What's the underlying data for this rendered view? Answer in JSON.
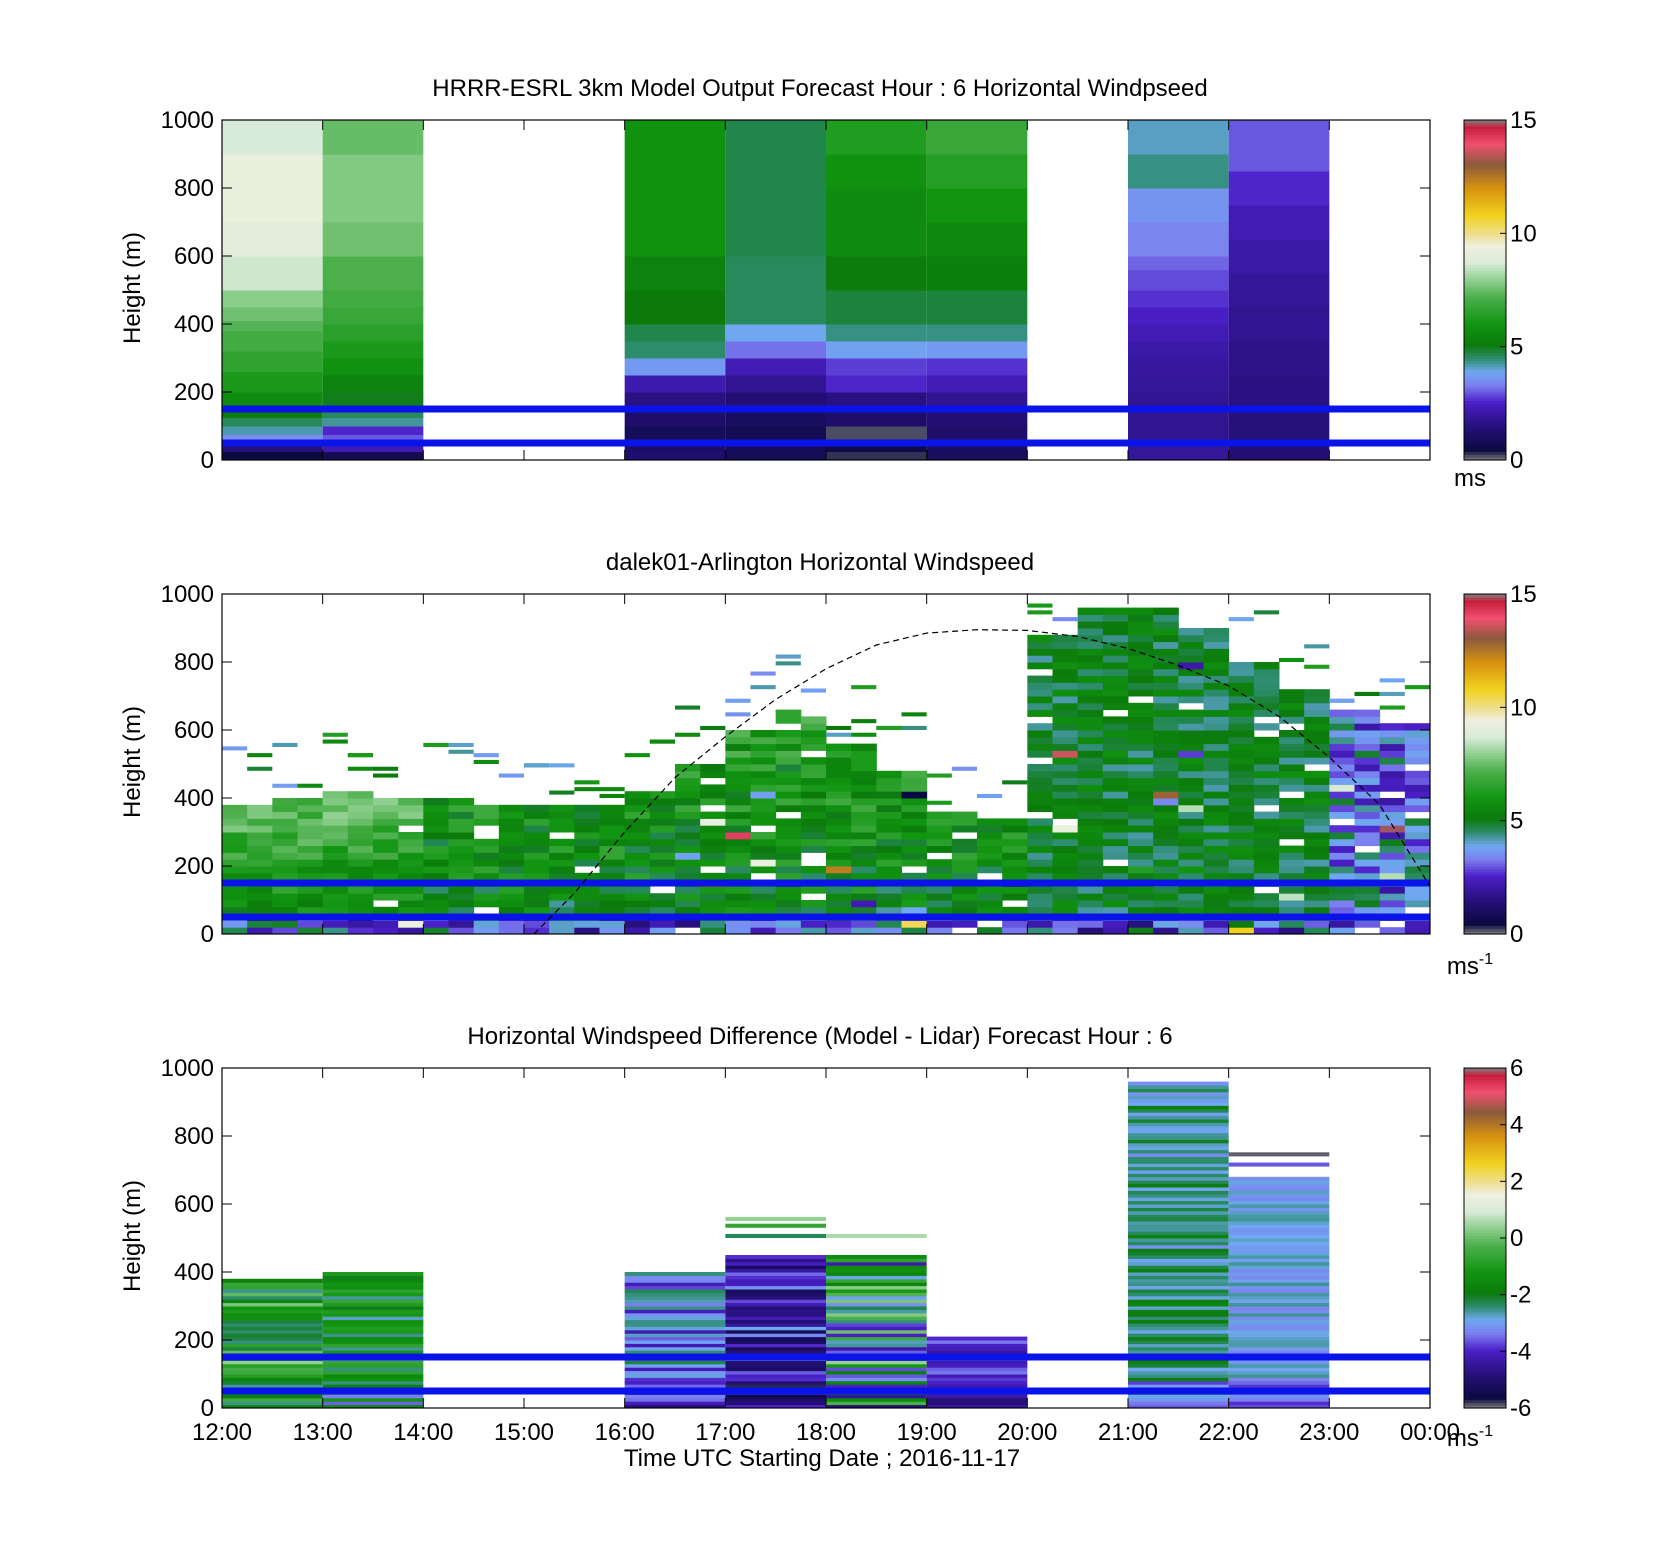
{
  "chart_data": [
    {
      "id": "model",
      "type": "heatmap",
      "title": "HRRR-ESRL 3km Model Output   Forecast Hour : 6 Horizontal Windpseed",
      "ylabel": "Height (m)",
      "xlabel": "",
      "xlim": [
        12,
        24
      ],
      "ylim": [
        0,
        1000
      ],
      "x_tick_labels": [
        "12:00",
        "13:00",
        "14:00",
        "15:00",
        "16:00",
        "17:00",
        "18:00",
        "19:00",
        "20:00",
        "21:00",
        "22:00",
        "23:00",
        "00:00"
      ],
      "y_tick_labels": [
        "0",
        "200",
        "400",
        "600",
        "800",
        "1000"
      ],
      "colorbar": {
        "min": 0,
        "max": 15,
        "ticks": [
          "0",
          "5",
          "10",
          "15"
        ],
        "unit": "ms",
        "unit_sup": ""
      },
      "reference_lines_m": [
        150,
        50
      ],
      "columns": [
        {
          "hour": 12,
          "segments": [
            [
              0,
              25,
              0.5
            ],
            [
              25,
              50,
              1.5
            ],
            [
              50,
              75,
              3.5
            ],
            [
              75,
              100,
              4.2
            ],
            [
              100,
              125,
              4.6
            ],
            [
              125,
              150,
              5.2
            ],
            [
              150,
              200,
              5.7
            ],
            [
              200,
              260,
              6.2
            ],
            [
              260,
              320,
              6.6
            ],
            [
              320,
              380,
              7.0
            ],
            [
              380,
              410,
              7.3
            ],
            [
              410,
              450,
              7.6
            ],
            [
              450,
              500,
              7.9
            ],
            [
              500,
              600,
              8.6
            ],
            [
              600,
              700,
              9.0
            ],
            [
              700,
              900,
              9.3
            ],
            [
              900,
              1000,
              8.7
            ]
          ]
        },
        {
          "hour": 13,
          "segments": [
            [
              0,
              25,
              0.8
            ],
            [
              25,
              50,
              2.3
            ],
            [
              50,
              75,
              3.0
            ],
            [
              75,
              100,
              2.6
            ],
            [
              100,
              125,
              4.3
            ],
            [
              125,
              150,
              4.6
            ],
            [
              150,
              200,
              5.0
            ],
            [
              200,
              250,
              5.4
            ],
            [
              250,
              300,
              5.9
            ],
            [
              300,
              350,
              6.2
            ],
            [
              350,
              400,
              6.5
            ],
            [
              400,
              450,
              6.8
            ],
            [
              450,
              500,
              7.0
            ],
            [
              500,
              600,
              7.2
            ],
            [
              600,
              700,
              7.6
            ],
            [
              700,
              900,
              7.8
            ],
            [
              900,
              1000,
              7.5
            ]
          ]
        },
        {
          "hour": 16,
          "segments": [
            [
              0,
              25,
              1.3
            ],
            [
              25,
              50,
              1.1
            ],
            [
              50,
              100,
              0.9
            ],
            [
              100,
              150,
              1.2
            ],
            [
              150,
              200,
              1.6
            ],
            [
              200,
              250,
              2.2
            ],
            [
              250,
              300,
              3.7
            ],
            [
              300,
              350,
              4.5
            ],
            [
              350,
              400,
              4.7
            ],
            [
              400,
              500,
              5.1
            ],
            [
              500,
              600,
              5.4
            ],
            [
              600,
              1000,
              5.9
            ]
          ]
        },
        {
          "hour": 17,
          "segments": [
            [
              0,
              50,
              0.9
            ],
            [
              50,
              100,
              0.8
            ],
            [
              100,
              150,
              1.0
            ],
            [
              150,
              200,
              1.4
            ],
            [
              200,
              250,
              1.8
            ],
            [
              250,
              300,
              2.3
            ],
            [
              300,
              350,
              3.2
            ],
            [
              350,
              400,
              3.9
            ],
            [
              400,
              600,
              4.6
            ],
            [
              600,
              1000,
              4.7
            ]
          ]
        },
        {
          "hour": 18,
          "segments": [
            [
              0,
              25,
              0.3
            ],
            [
              25,
              50,
              0.6
            ],
            [
              50,
              100,
              0.2
            ],
            [
              100,
              150,
              1.2
            ],
            [
              150,
              200,
              1.6
            ],
            [
              200,
              250,
              2.6
            ],
            [
              250,
              300,
              2.8
            ],
            [
              300,
              350,
              3.8
            ],
            [
              350,
              400,
              4.4
            ],
            [
              400,
              500,
              4.8
            ],
            [
              500,
              600,
              5.2
            ],
            [
              600,
              800,
              5.7
            ],
            [
              800,
              900,
              5.9
            ],
            [
              900,
              1000,
              6.3
            ]
          ]
        },
        {
          "hour": 19,
          "segments": [
            [
              0,
              50,
              1.0
            ],
            [
              50,
              100,
              1.2
            ],
            [
              100,
              150,
              1.4
            ],
            [
              150,
              200,
              1.8
            ],
            [
              200,
              250,
              2.3
            ],
            [
              250,
              300,
              2.7
            ],
            [
              300,
              350,
              3.7
            ],
            [
              350,
              400,
              4.4
            ],
            [
              400,
              500,
              4.8
            ],
            [
              500,
              600,
              5.3
            ],
            [
              600,
              700,
              5.6
            ],
            [
              700,
              800,
              6.0
            ],
            [
              800,
              900,
              6.4
            ],
            [
              900,
              1000,
              6.8
            ]
          ]
        },
        {
          "hour": 21,
          "segments": [
            [
              0,
              50,
              1.9
            ],
            [
              50,
              100,
              1.8
            ],
            [
              100,
              200,
              1.8
            ],
            [
              200,
              250,
              1.9
            ],
            [
              250,
              300,
              2.0
            ],
            [
              300,
              350,
              2.1
            ],
            [
              350,
              400,
              2.3
            ],
            [
              400,
              450,
              2.5
            ],
            [
              450,
              500,
              2.7
            ],
            [
              500,
              560,
              2.9
            ],
            [
              560,
              600,
              3.1
            ],
            [
              600,
              700,
              3.4
            ],
            [
              700,
              800,
              3.6
            ],
            [
              800,
              900,
              4.4
            ],
            [
              900,
              1000,
              4.1
            ]
          ]
        },
        {
          "hour": 22,
          "segments": [
            [
              0,
              50,
              1.4
            ],
            [
              50,
              150,
              1.5
            ],
            [
              150,
              250,
              1.6
            ],
            [
              250,
              350,
              1.7
            ],
            [
              350,
              450,
              1.8
            ],
            [
              450,
              550,
              1.9
            ],
            [
              550,
              650,
              2.1
            ],
            [
              650,
              750,
              2.3
            ],
            [
              750,
              850,
              2.6
            ],
            [
              850,
              1000,
              3.0
            ]
          ]
        }
      ]
    },
    {
      "id": "lidar",
      "type": "heatmap",
      "title": "dalek01-Arlington  Horizontal Windspeed",
      "ylabel": "Height (m)",
      "xlabel": "",
      "xlim": [
        12,
        24
      ],
      "ylim": [
        0,
        1000
      ],
      "x_tick_labels": [
        "12:00",
        "13:00",
        "14:00",
        "15:00",
        "16:00",
        "17:00",
        "18:00",
        "19:00",
        "20:00",
        "21:00",
        "22:00",
        "23:00",
        "00:00"
      ],
      "y_tick_labels": [
        "0",
        "200",
        "400",
        "600",
        "800",
        "1000"
      ],
      "colorbar": {
        "min": 0,
        "max": 15,
        "ticks": [
          "0",
          "5",
          "10",
          "15"
        ],
        "unit": "ms",
        "unit_sup": "-1"
      },
      "reference_lines_m": [
        150,
        50
      ],
      "boundary_layer_curve": [
        [
          15.1,
          0
        ],
        [
          15.5,
          120
        ],
        [
          16,
          300
        ],
        [
          16.5,
          460
        ],
        [
          17,
          580
        ],
        [
          17.5,
          690
        ],
        [
          18,
          780
        ],
        [
          18.5,
          850
        ],
        [
          19,
          885
        ],
        [
          19.5,
          895
        ],
        [
          20,
          893
        ],
        [
          20.5,
          875
        ],
        [
          21,
          840
        ],
        [
          21.5,
          790
        ],
        [
          22,
          730
        ],
        [
          22.5,
          640
        ],
        [
          23,
          520
        ],
        [
          23.5,
          380
        ],
        [
          24,
          140
        ]
      ],
      "column_tops_m": [
        [
          12,
          380
        ],
        [
          12.5,
          390
        ],
        [
          13,
          420
        ],
        [
          13.5,
          400
        ],
        [
          14,
          390
        ],
        [
          14.5,
          380
        ],
        [
          15,
          370
        ],
        [
          15.5,
          380
        ],
        [
          16,
          420
        ],
        [
          16.5,
          500
        ],
        [
          17,
          600
        ],
        [
          17.5,
          650
        ],
        [
          18,
          560
        ],
        [
          18.5,
          480
        ],
        [
          19,
          360
        ],
        [
          19.5,
          340
        ],
        [
          20,
          880
        ],
        [
          20.5,
          960
        ],
        [
          21,
          960
        ],
        [
          21.5,
          900
        ],
        [
          22,
          800
        ],
        [
          22.5,
          720
        ],
        [
          23,
          660
        ],
        [
          23.5,
          620
        ]
      ]
    },
    {
      "id": "difference",
      "type": "heatmap",
      "title": "Horizontal Windspeed Difference (Model - Lidar) Forecast Hour : 6",
      "ylabel": "Height (m)",
      "xlabel": "Time UTC  Starting Date ; 2016-11-17",
      "xlim": [
        12,
        24
      ],
      "ylim": [
        0,
        1000
      ],
      "x_tick_labels": [
        "12:00",
        "13:00",
        "14:00",
        "15:00",
        "16:00",
        "17:00",
        "18:00",
        "19:00",
        "20:00",
        "21:00",
        "22:00",
        "23:00",
        "00:00"
      ],
      "y_tick_labels": [
        "0",
        "200",
        "400",
        "600",
        "800",
        "1000"
      ],
      "colorbar": {
        "min": -6,
        "max": 6,
        "ticks": [
          "-6",
          "-4",
          "-2",
          "0",
          "2",
          "4",
          "6"
        ],
        "unit": "ms",
        "unit_sup": "-1"
      },
      "reference_lines_m": [
        150,
        50
      ],
      "columns": [
        {
          "hour": 12,
          "top": 380,
          "base": -1.2,
          "amp": 1.6
        },
        {
          "hour": 13,
          "top": 400,
          "base": -1.8,
          "amp": 1.2
        },
        {
          "hour": 16,
          "top": 400,
          "base": -3.2,
          "amp": 1.0
        },
        {
          "hour": 17,
          "top": 450,
          "base": -4.0,
          "amp": 1.4
        },
        {
          "hour": 18,
          "top": 450,
          "base": -2.0,
          "amp": 2.5
        },
        {
          "hour": 19,
          "top": 210,
          "base": -3.8,
          "amp": 0.7
        },
        {
          "hour": 21,
          "top": 960,
          "base": -2.4,
          "amp": 0.8
        },
        {
          "hour": 22,
          "top": 680,
          "base": -2.9,
          "amp": 0.4
        }
      ],
      "extra_strips": [
        [
          17,
          530,
          -0.6
        ],
        [
          17,
          550,
          0.4
        ],
        [
          17,
          500,
          -2.3
        ],
        [
          18,
          500,
          0.6
        ],
        [
          22,
          740,
          -5.9
        ],
        [
          22,
          710,
          -3.6
        ]
      ]
    }
  ],
  "colors": {
    "reference_line": "#0a14e8",
    "curve": "#000000",
    "axis": "#000000",
    "colormap_stops": [
      [
        0.0,
        "#7f7f7f"
      ],
      [
        0.03,
        "#0a0a40"
      ],
      [
        0.1,
        "#26107a"
      ],
      [
        0.17,
        "#4b1fc8"
      ],
      [
        0.22,
        "#7c7ef0"
      ],
      [
        0.26,
        "#6fa8f0"
      ],
      [
        0.3,
        "#2c8c6c"
      ],
      [
        0.34,
        "#0b7a0b"
      ],
      [
        0.4,
        "#119511"
      ],
      [
        0.48,
        "#4caf4c"
      ],
      [
        0.53,
        "#8fcf8f"
      ],
      [
        0.58,
        "#d8ebd8"
      ],
      [
        0.63,
        "#f0f0e0"
      ],
      [
        0.66,
        "#eee09a"
      ],
      [
        0.72,
        "#f1d21f"
      ],
      [
        0.8,
        "#d8920f"
      ],
      [
        0.87,
        "#8c5a3c"
      ],
      [
        0.93,
        "#f05070"
      ],
      [
        0.98,
        "#c81e3c"
      ],
      [
        1.0,
        "#7f7f7f"
      ]
    ]
  }
}
